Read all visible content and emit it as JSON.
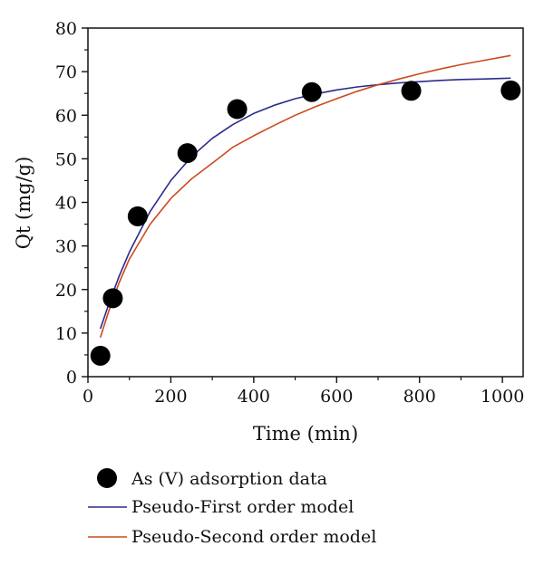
{
  "chart_data": {
    "type": "scatter",
    "xlabel": "Time (min)",
    "ylabel": "Qt (mg/g)",
    "xlim": [
      0,
      1050
    ],
    "ylim": [
      0,
      80
    ],
    "x_ticks": [
      0,
      200,
      400,
      600,
      800,
      1000
    ],
    "y_ticks": [
      0,
      10,
      20,
      30,
      40,
      50,
      60,
      70,
      80
    ],
    "grid": false,
    "legend_position": "bottom",
    "series": [
      {
        "name": "As (V) adsorption data",
        "kind": "points",
        "color": "#000000",
        "x": [
          30,
          60,
          120,
          240,
          360,
          540,
          780,
          1020
        ],
        "y": [
          4.8,
          18.0,
          36.8,
          51.3,
          61.4,
          65.3,
          65.6,
          65.7
        ]
      },
      {
        "name": "Pseudo-First order model",
        "kind": "line",
        "color": "#2b2b8c",
        "x": [
          30,
          50,
          75,
          100,
          150,
          200,
          250,
          300,
          350,
          400,
          450,
          500,
          550,
          600,
          650,
          700,
          750,
          800,
          850,
          900,
          950,
          1020
        ],
        "y": [
          11.0,
          16.6,
          23.0,
          28.6,
          37.9,
          45.0,
          50.5,
          54.7,
          57.9,
          60.4,
          62.3,
          63.8,
          64.9,
          65.8,
          66.5,
          67.0,
          67.4,
          67.7,
          68.0,
          68.2,
          68.3,
          68.5
        ]
      },
      {
        "name": "Pseudo-Second order model",
        "kind": "line",
        "color": "#cc4a1c",
        "x": [
          30,
          50,
          75,
          100,
          150,
          200,
          250,
          300,
          350,
          400,
          450,
          500,
          550,
          600,
          650,
          700,
          750,
          800,
          850,
          900,
          950,
          1020
        ],
        "y": [
          9.0,
          15.0,
          21.5,
          27.0,
          35.0,
          40.9,
          45.4,
          49.0,
          52.7,
          55.3,
          57.7,
          60.0,
          62.0,
          63.8,
          65.5,
          67.0,
          68.3,
          69.5,
          70.6,
          71.6,
          72.5,
          73.7
        ]
      }
    ]
  }
}
